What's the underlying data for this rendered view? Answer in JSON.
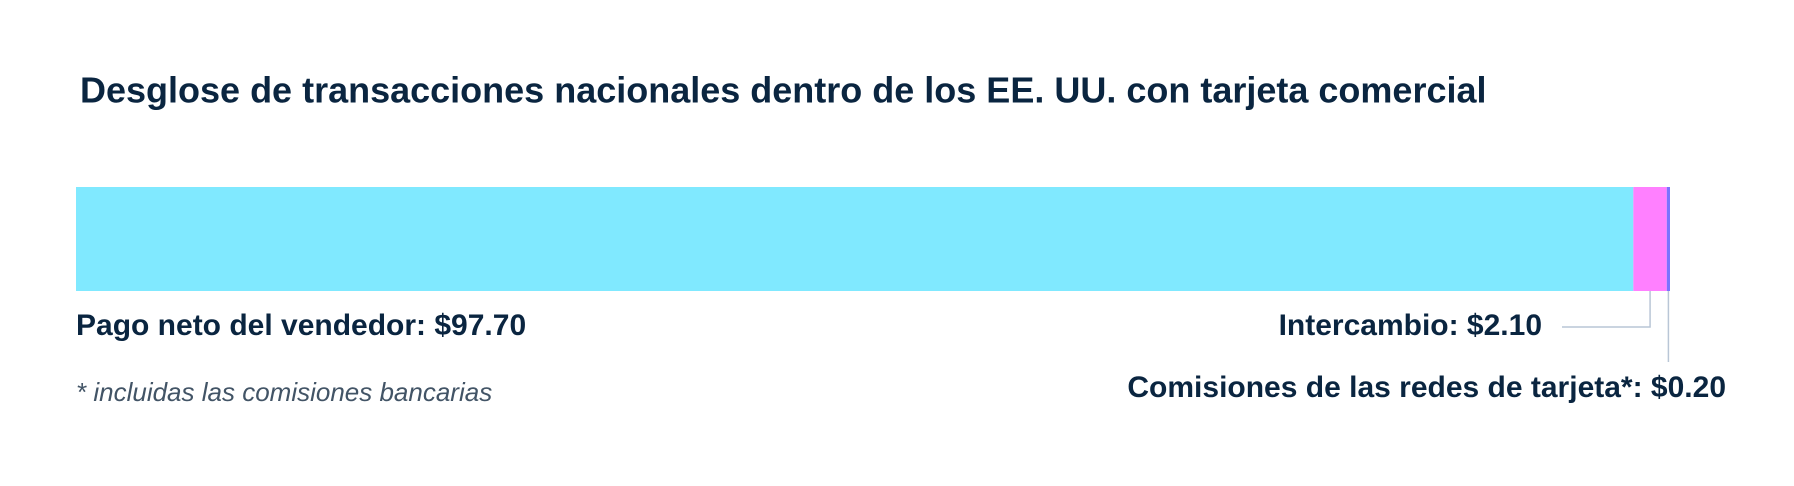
{
  "chart_data": {
    "type": "bar",
    "orientation": "horizontal",
    "stacked": true,
    "title": "Desglose de transacciones nacionales dentro de los EE. UU. con tarjeta comercial",
    "xlim": [
      0,
      100
    ],
    "series": [
      {
        "color": "#80e9ff",
        "values": [
          97.7
        ],
        "value_labels": [
          "Pago neto del vendedor: $97.70"
        ]
      },
      {
        "color": "#ff80ff",
        "values": [
          2.1
        ],
        "value_labels": [
          "Intercambio: $2.10"
        ]
      },
      {
        "color": "#7a73ff",
        "values": [
          0.2
        ],
        "value_labels": [
          "Comisiones de las redes de tarjeta*: $0.20"
        ]
      }
    ],
    "note": "* incluidas las comisiones bancarias"
  }
}
